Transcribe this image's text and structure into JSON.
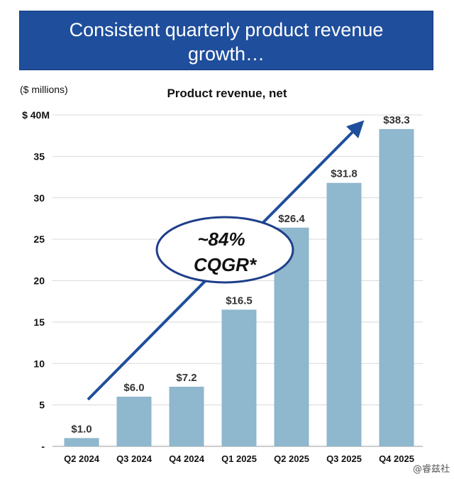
{
  "banner": {
    "line1": "Consistent quarterly product revenue",
    "line2": "growth…"
  },
  "chart_data": {
    "type": "bar",
    "title": "Product revenue, net",
    "ylabel": "($ millions)",
    "xlabel": "",
    "categories": [
      "Q2 2024",
      "Q3 2024",
      "Q4 2024",
      "Q1 2025",
      "Q2 2025",
      "Q3 2025",
      "Q4 2025"
    ],
    "values": [
      1.0,
      6.0,
      7.2,
      16.5,
      26.4,
      31.8,
      38.3
    ],
    "data_labels": [
      "$1.0",
      "$6.0",
      "$7.2",
      "$16.5",
      "$26.4",
      "$31.8",
      "$38.3"
    ],
    "ylim": [
      0,
      40
    ],
    "yticks": [
      0,
      5,
      10,
      15,
      20,
      25,
      30,
      35,
      40
    ],
    "ytick_labels": [
      "-",
      "5",
      "10",
      "15",
      "20",
      "25",
      "30",
      "35",
      "$ 40M"
    ],
    "annotation": {
      "line1": "~84%",
      "line2": "CQGR*"
    },
    "colors": {
      "bar": "#8fb7cd",
      "arrow": "#1f4e9c",
      "ellipse_border": "#1f3f8a"
    }
  },
  "watermark": "@睿兹社"
}
